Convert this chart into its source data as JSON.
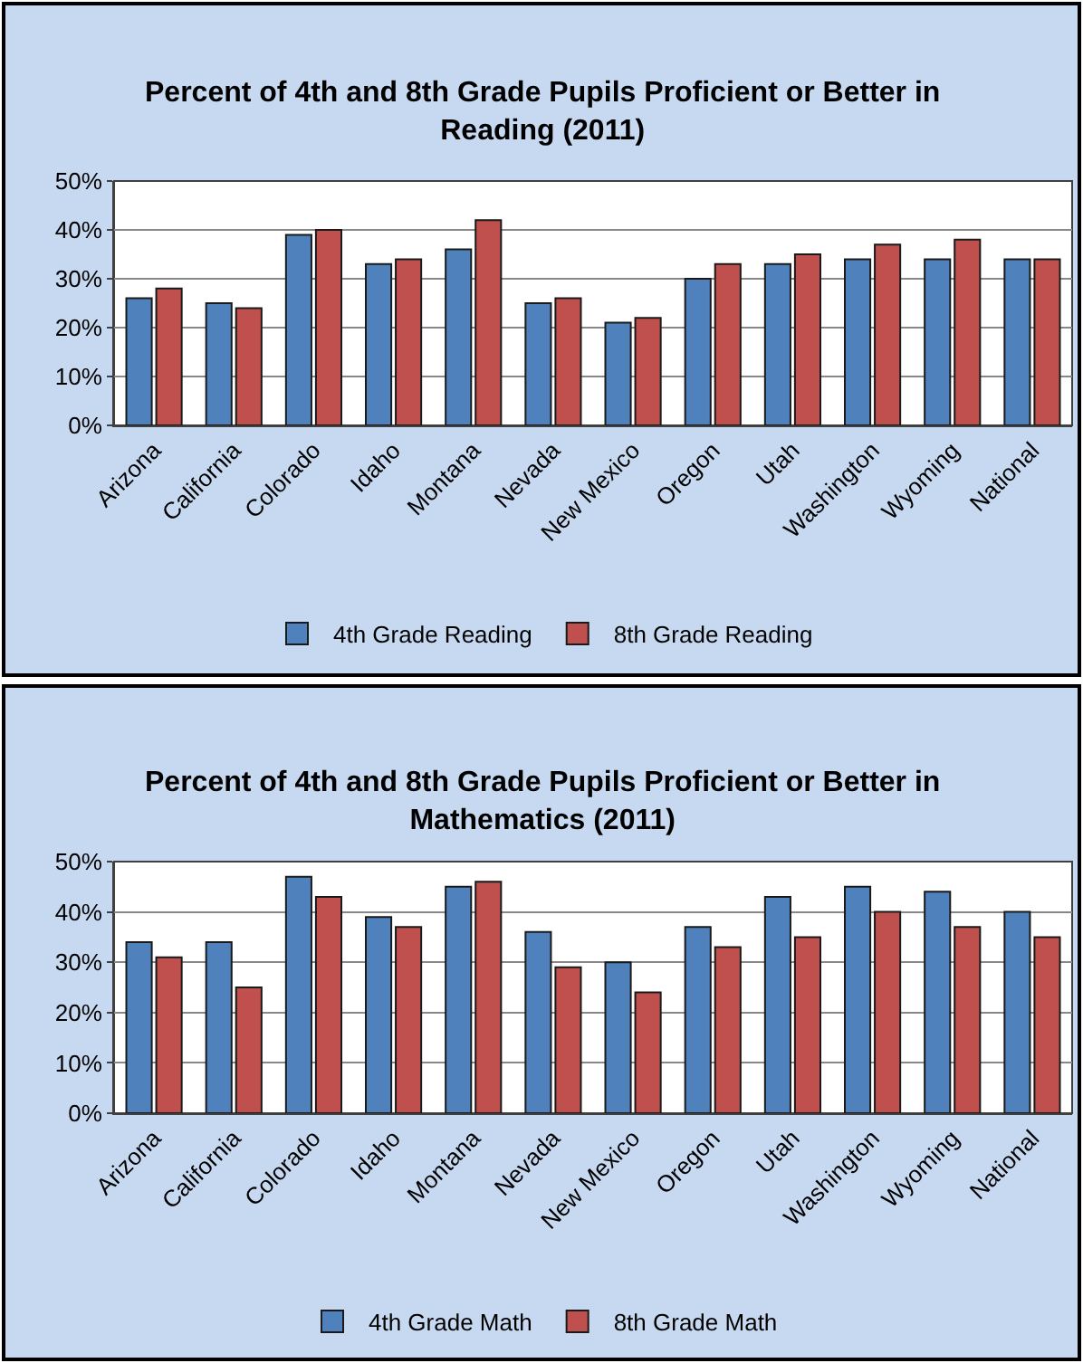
{
  "chart_data": [
    {
      "type": "bar",
      "title": "Percent of 4th and 8th Grade Pupils Proficient or Better in Reading (2011)",
      "categories": [
        "Arizona",
        "California",
        "Colorado",
        "Idaho",
        "Montana",
        "Nevada",
        "New Mexico",
        "Oregon",
        "Utah",
        "Washington",
        "Wyoming",
        "National"
      ],
      "series": [
        {
          "name": "4th Grade Reading",
          "color": "#4f81bd",
          "values": [
            26,
            25,
            39,
            33,
            36,
            25,
            21,
            30,
            33,
            34,
            34,
            34
          ]
        },
        {
          "name": "8th Grade Reading",
          "color": "#c0504d",
          "values": [
            28,
            24,
            40,
            34,
            42,
            26,
            22,
            33,
            35,
            37,
            38,
            34
          ]
        }
      ],
      "ylim": [
        0,
        50
      ],
      "yticks": [
        {
          "value": 0,
          "label": "0%"
        },
        {
          "value": 10,
          "label": "10%"
        },
        {
          "value": 20,
          "label": "20%"
        },
        {
          "value": 30,
          "label": "30%"
        },
        {
          "value": 40,
          "label": "40%"
        },
        {
          "value": 50,
          "label": "50%"
        }
      ],
      "grid": "y",
      "legend": "bottom"
    },
    {
      "type": "bar",
      "title": "Percent of 4th and 8th Grade Pupils Proficient or Better in Mathematics (2011)",
      "categories": [
        "Arizona",
        "California",
        "Colorado",
        "Idaho",
        "Montana",
        "Nevada",
        "New Mexico",
        "Oregon",
        "Utah",
        "Washington",
        "Wyoming",
        "National"
      ],
      "series": [
        {
          "name": "4th Grade Math",
          "color": "#4f81bd",
          "values": [
            34,
            34,
            47,
            39,
            45,
            36,
            30,
            37,
            43,
            45,
            44,
            40
          ]
        },
        {
          "name": "8th Grade Math",
          "color": "#c0504d",
          "values": [
            31,
            25,
            43,
            37,
            46,
            29,
            24,
            33,
            35,
            40,
            37,
            35
          ]
        }
      ],
      "ylim": [
        0,
        50
      ],
      "yticks": [
        {
          "value": 0,
          "label": "0%"
        },
        {
          "value": 10,
          "label": "10%"
        },
        {
          "value": 20,
          "label": "20%"
        },
        {
          "value": 30,
          "label": "30%"
        },
        {
          "value": 40,
          "label": "40%"
        },
        {
          "value": 50,
          "label": "50%"
        }
      ],
      "grid": "y",
      "legend": "bottom"
    }
  ]
}
